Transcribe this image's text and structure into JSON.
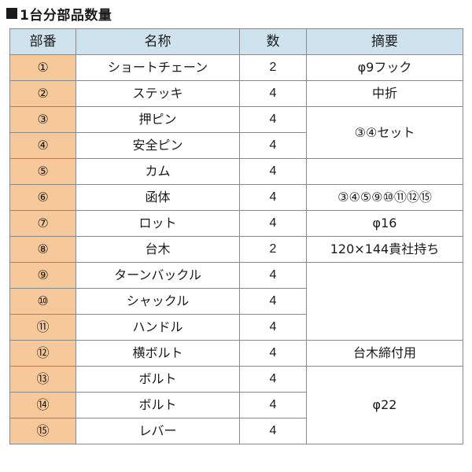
{
  "title": "1台分部品数量",
  "table": {
    "headers": {
      "part_no": "部番",
      "name": "名称",
      "qty": "数",
      "note": "摘要"
    },
    "rows": [
      {
        "part_no": "①",
        "name": "ショートチェーン",
        "qty": "2"
      },
      {
        "part_no": "②",
        "name": "ステッキ",
        "qty": "4"
      },
      {
        "part_no": "③",
        "name": "押ピン",
        "qty": "4"
      },
      {
        "part_no": "④",
        "name": "安全ピン",
        "qty": "4"
      },
      {
        "part_no": "⑤",
        "name": "カム",
        "qty": "4"
      },
      {
        "part_no": "⑥",
        "name": "函体",
        "qty": "4"
      },
      {
        "part_no": "⑦",
        "name": "ロット",
        "qty": "4"
      },
      {
        "part_no": "⑧",
        "name": "台木",
        "qty": "2"
      },
      {
        "part_no": "⑨",
        "name": "ターンバックル",
        "qty": "4"
      },
      {
        "part_no": "⑩",
        "name": "シャックル",
        "qty": "4"
      },
      {
        "part_no": "⑪",
        "name": "ハンドル",
        "qty": "4"
      },
      {
        "part_no": "⑫",
        "name": "横ボルト",
        "qty": "4"
      },
      {
        "part_no": "⑬",
        "name": "ボルト",
        "qty": "4"
      },
      {
        "part_no": "⑭",
        "name": "ボルト",
        "qty": "4"
      },
      {
        "part_no": "⑮",
        "name": "レバー",
        "qty": "4"
      }
    ],
    "notes": {
      "r1": "φ9フック",
      "r2": "中折",
      "r3_4": "③④セット",
      "r5": "",
      "r6": "③④⑤⑨⑩⑪⑫⑮",
      "r7": "φ16",
      "r8": "120×144貴社持ち",
      "r9_11": "",
      "r12": "台木締付用",
      "r13_15": "φ22"
    }
  }
}
